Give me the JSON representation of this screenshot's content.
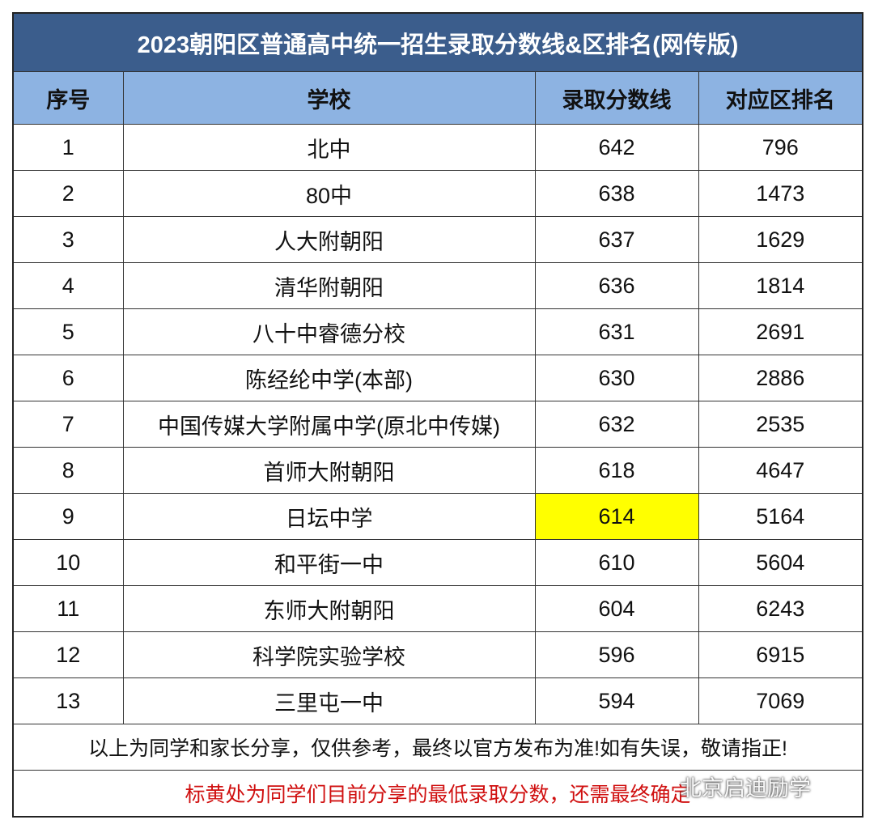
{
  "table": {
    "title": "2023朝阳区普通高中统一招生录取分数线&区排名(网传版)",
    "columns": [
      "序号",
      "学校",
      "录取分数线",
      "对应区排名"
    ],
    "rows": [
      [
        1,
        "北中",
        642,
        796
      ],
      [
        2,
        "80中",
        638,
        1473
      ],
      [
        3,
        "人大附朝阳",
        637,
        1629
      ],
      [
        4,
        "清华附朝阳",
        636,
        1814
      ],
      [
        5,
        "八十中睿德分校",
        631,
        2691
      ],
      [
        6,
        "陈经纶中学(本部)",
        630,
        2886
      ],
      [
        7,
        "中国传媒大学附属中学(原北中传媒)",
        632,
        2535
      ],
      [
        8,
        "首师大附朝阳",
        618,
        4647
      ],
      [
        9,
        "日坛中学",
        614,
        5164
      ],
      [
        10,
        "和平街一中",
        610,
        5604
      ],
      [
        11,
        "东师大附朝阳",
        604,
        6243
      ],
      [
        12,
        "科学院实验学校",
        596,
        6915
      ],
      [
        13,
        "三里屯一中",
        594,
        7069
      ]
    ],
    "notes": [
      "以上为同学和家长分享，仅供参考，最终以官方发布为准!如有失误，敬请指正!",
      "标黄处为同学们目前分享的最低录取分数，还需最终确定"
    ]
  },
  "watermark": "北京启迪励学"
}
